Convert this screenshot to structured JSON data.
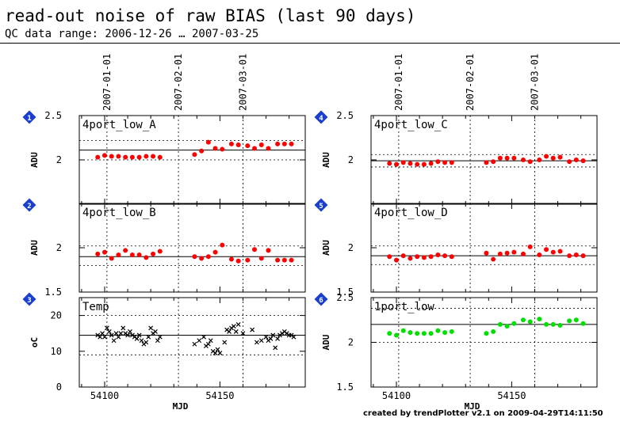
{
  "title": "read-out noise of raw BIAS (last 90 days)",
  "subtitle": "QC data range: 2006-12-26 … 2007-03-25",
  "credit": "created by trendPlotter v2.1 on 2009-04-29T14:11:50",
  "colors": {
    "red": "#ff0000",
    "green": "#00e000",
    "black": "#000000",
    "badge": "#1a3fcf"
  },
  "date_markers": [
    {
      "label": "2007-01-01",
      "mjd": 54101
    },
    {
      "label": "2007-02-01",
      "mjd": 54132
    },
    {
      "label": "2007-03-01",
      "mjd": 54160
    }
  ],
  "x_axis": {
    "label": "MJD",
    "range": [
      54089,
      54187
    ],
    "ticks": [
      54100,
      54150
    ]
  },
  "chart_data": [
    {
      "type": "scatter",
      "badge": "1",
      "panel_label": "4port_low_A",
      "ylabel": "ADU",
      "ylim": [
        1.5,
        2.5
      ],
      "ticks": [
        2,
        2.5
      ],
      "tick_labels": [
        "2",
        "2.5"
      ],
      "ref_line": 2.11,
      "dotted_lines": [
        2.0,
        2.22
      ],
      "marker": "dot",
      "color": "red",
      "x": [
        54097,
        54100,
        54103,
        54106,
        54109,
        54112,
        54115,
        54118,
        54121,
        54124,
        54139,
        54142,
        54145,
        54148,
        54151,
        54155,
        54158,
        54162,
        54165,
        54168,
        54171,
        54175,
        54178,
        54181
      ],
      "y": [
        2.03,
        2.05,
        2.04,
        2.04,
        2.03,
        2.03,
        2.03,
        2.04,
        2.04,
        2.03,
        2.06,
        2.1,
        2.2,
        2.13,
        2.12,
        2.18,
        2.17,
        2.16,
        2.13,
        2.17,
        2.13,
        2.18,
        2.18,
        2.18
      ]
    },
    {
      "type": "scatter",
      "badge": "2",
      "panel_label": "4port_low_B",
      "ylabel": "ADU",
      "ylim": [
        1.5,
        2.5
      ],
      "ticks": [
        1.5,
        2
      ],
      "tick_labels": [
        "1.5",
        "2"
      ],
      "ref_line": 1.9,
      "dotted_lines": [
        1.8,
        2.02
      ],
      "marker": "dot",
      "color": "red",
      "x": [
        54097,
        54100,
        54103,
        54106,
        54109,
        54112,
        54115,
        54118,
        54121,
        54124,
        54139,
        54142,
        54145,
        54148,
        54151,
        54155,
        54158,
        54162,
        54165,
        54168,
        54171,
        54175,
        54178,
        54181
      ],
      "y": [
        1.93,
        1.95,
        1.88,
        1.92,
        1.97,
        1.92,
        1.92,
        1.89,
        1.93,
        1.96,
        1.9,
        1.88,
        1.9,
        1.95,
        2.03,
        1.87,
        1.85,
        1.86,
        1.98,
        1.88,
        1.97,
        1.86,
        1.86,
        1.86
      ]
    },
    {
      "type": "scatter",
      "badge": "3",
      "panel_label": "Temp",
      "ylabel": "oC",
      "ylim": [
        0,
        25
      ],
      "ticks": [
        0,
        10,
        20
      ],
      "tick_labels": [
        "0",
        "10",
        "20"
      ],
      "ref_line": 14.5,
      "dotted_lines": [
        9,
        20
      ],
      "marker": "cross",
      "color": "black",
      "x": [
        54097,
        54098,
        54099,
        54100,
        54101,
        54102,
        54103,
        54104,
        54105,
        54106,
        54107,
        54108,
        54109,
        54110,
        54111,
        54112,
        54113,
        54114,
        54115,
        54116,
        54117,
        54118,
        54119,
        54120,
        54121,
        54122,
        54123,
        54124,
        54139,
        54141,
        54143,
        54144,
        54145,
        54146,
        54147,
        54148,
        54149,
        54150,
        54152,
        54153,
        54154,
        54155,
        54156,
        54157,
        54158,
        54160,
        54164,
        54166,
        54168,
        54170,
        54171,
        54172,
        54173,
        54174,
        54175,
        54176,
        54177,
        54178,
        54179,
        54180,
        54181,
        54182
      ],
      "y": [
        14.5,
        14,
        15,
        14,
        16.5,
        15.5,
        14.5,
        13,
        15,
        14,
        15,
        16.5,
        15,
        14.5,
        15.5,
        14.5,
        14,
        13.5,
        14.5,
        13,
        12,
        12.5,
        14,
        16.5,
        15,
        15.5,
        13,
        14,
        12,
        13,
        14,
        11.5,
        12,
        13,
        10,
        9.5,
        10.5,
        9.5,
        12.5,
        16,
        15.5,
        16.5,
        17,
        15.5,
        17.5,
        15,
        16,
        12.5,
        13,
        14,
        13,
        13.5,
        14.5,
        11,
        13.5,
        14.5,
        15,
        15.5,
        15,
        14.5,
        14.5,
        14
      ]
    },
    {
      "type": "scatter",
      "badge": "4",
      "panel_label": "4port_low_C",
      "ylabel": "ADU",
      "ylim": [
        1.5,
        2.5
      ],
      "ticks": [
        2,
        2.5
      ],
      "tick_labels": [
        "2",
        "2.5"
      ],
      "ref_line": 1.99,
      "dotted_lines": [
        1.92,
        2.06
      ],
      "marker": "dot",
      "color": "red",
      "x": [
        54097,
        54100,
        54103,
        54106,
        54109,
        54112,
        54115,
        54118,
        54121,
        54124,
        54139,
        54142,
        54145,
        54148,
        54151,
        54155,
        54158,
        54162,
        54165,
        54168,
        54171,
        54175,
        54178,
        54181
      ],
      "y": [
        1.96,
        1.95,
        1.97,
        1.96,
        1.95,
        1.95,
        1.96,
        1.98,
        1.97,
        1.97,
        1.97,
        1.98,
        2.02,
        2.02,
        2.02,
        2.0,
        1.98,
        2.0,
        2.04,
        2.02,
        2.03,
        1.98,
        2.0,
        1.99
      ]
    },
    {
      "type": "scatter",
      "badge": "5",
      "panel_label": "4port_low_D",
      "ylabel": "ADU",
      "ylim": [
        1.5,
        2.5
      ],
      "ticks": [
        1.5,
        2
      ],
      "tick_labels": [
        "1.5",
        "2"
      ],
      "ref_line": 1.91,
      "dotted_lines": [
        1.81,
        2.02
      ],
      "marker": "dot",
      "color": "red",
      "x": [
        54097,
        54100,
        54103,
        54106,
        54109,
        54112,
        54115,
        54118,
        54121,
        54124,
        54139,
        54142,
        54145,
        54148,
        54151,
        54155,
        54158,
        54162,
        54165,
        54168,
        54171,
        54175,
        54178,
        54181
      ],
      "y": [
        1.9,
        1.86,
        1.91,
        1.88,
        1.9,
        1.89,
        1.9,
        1.92,
        1.91,
        1.9,
        1.94,
        1.87,
        1.93,
        1.94,
        1.95,
        1.93,
        2.01,
        1.92,
        1.98,
        1.95,
        1.96,
        1.91,
        1.92,
        1.91
      ]
    },
    {
      "type": "scatter",
      "badge": "6",
      "panel_label": "1port_low",
      "ylabel": "ADU",
      "ylim": [
        1.5,
        2.5
      ],
      "ticks": [
        1.5,
        2,
        2.5
      ],
      "tick_labels": [
        "1.5",
        "2",
        "2.5"
      ],
      "ref_line": 2.2,
      "dotted_lines": [
        2.0,
        2.38
      ],
      "marker": "dot",
      "color": "green",
      "x": [
        54097,
        54100,
        54103,
        54106,
        54109,
        54112,
        54115,
        54118,
        54121,
        54124,
        54139,
        54142,
        54145,
        54148,
        54151,
        54155,
        54158,
        54162,
        54165,
        54168,
        54171,
        54175,
        54178,
        54181
      ],
      "y": [
        2.1,
        2.08,
        2.13,
        2.11,
        2.1,
        2.1,
        2.1,
        2.13,
        2.11,
        2.12,
        2.1,
        2.12,
        2.2,
        2.18,
        2.21,
        2.25,
        2.23,
        2.26,
        2.2,
        2.2,
        2.19,
        2.24,
        2.25,
        2.21
      ]
    }
  ]
}
